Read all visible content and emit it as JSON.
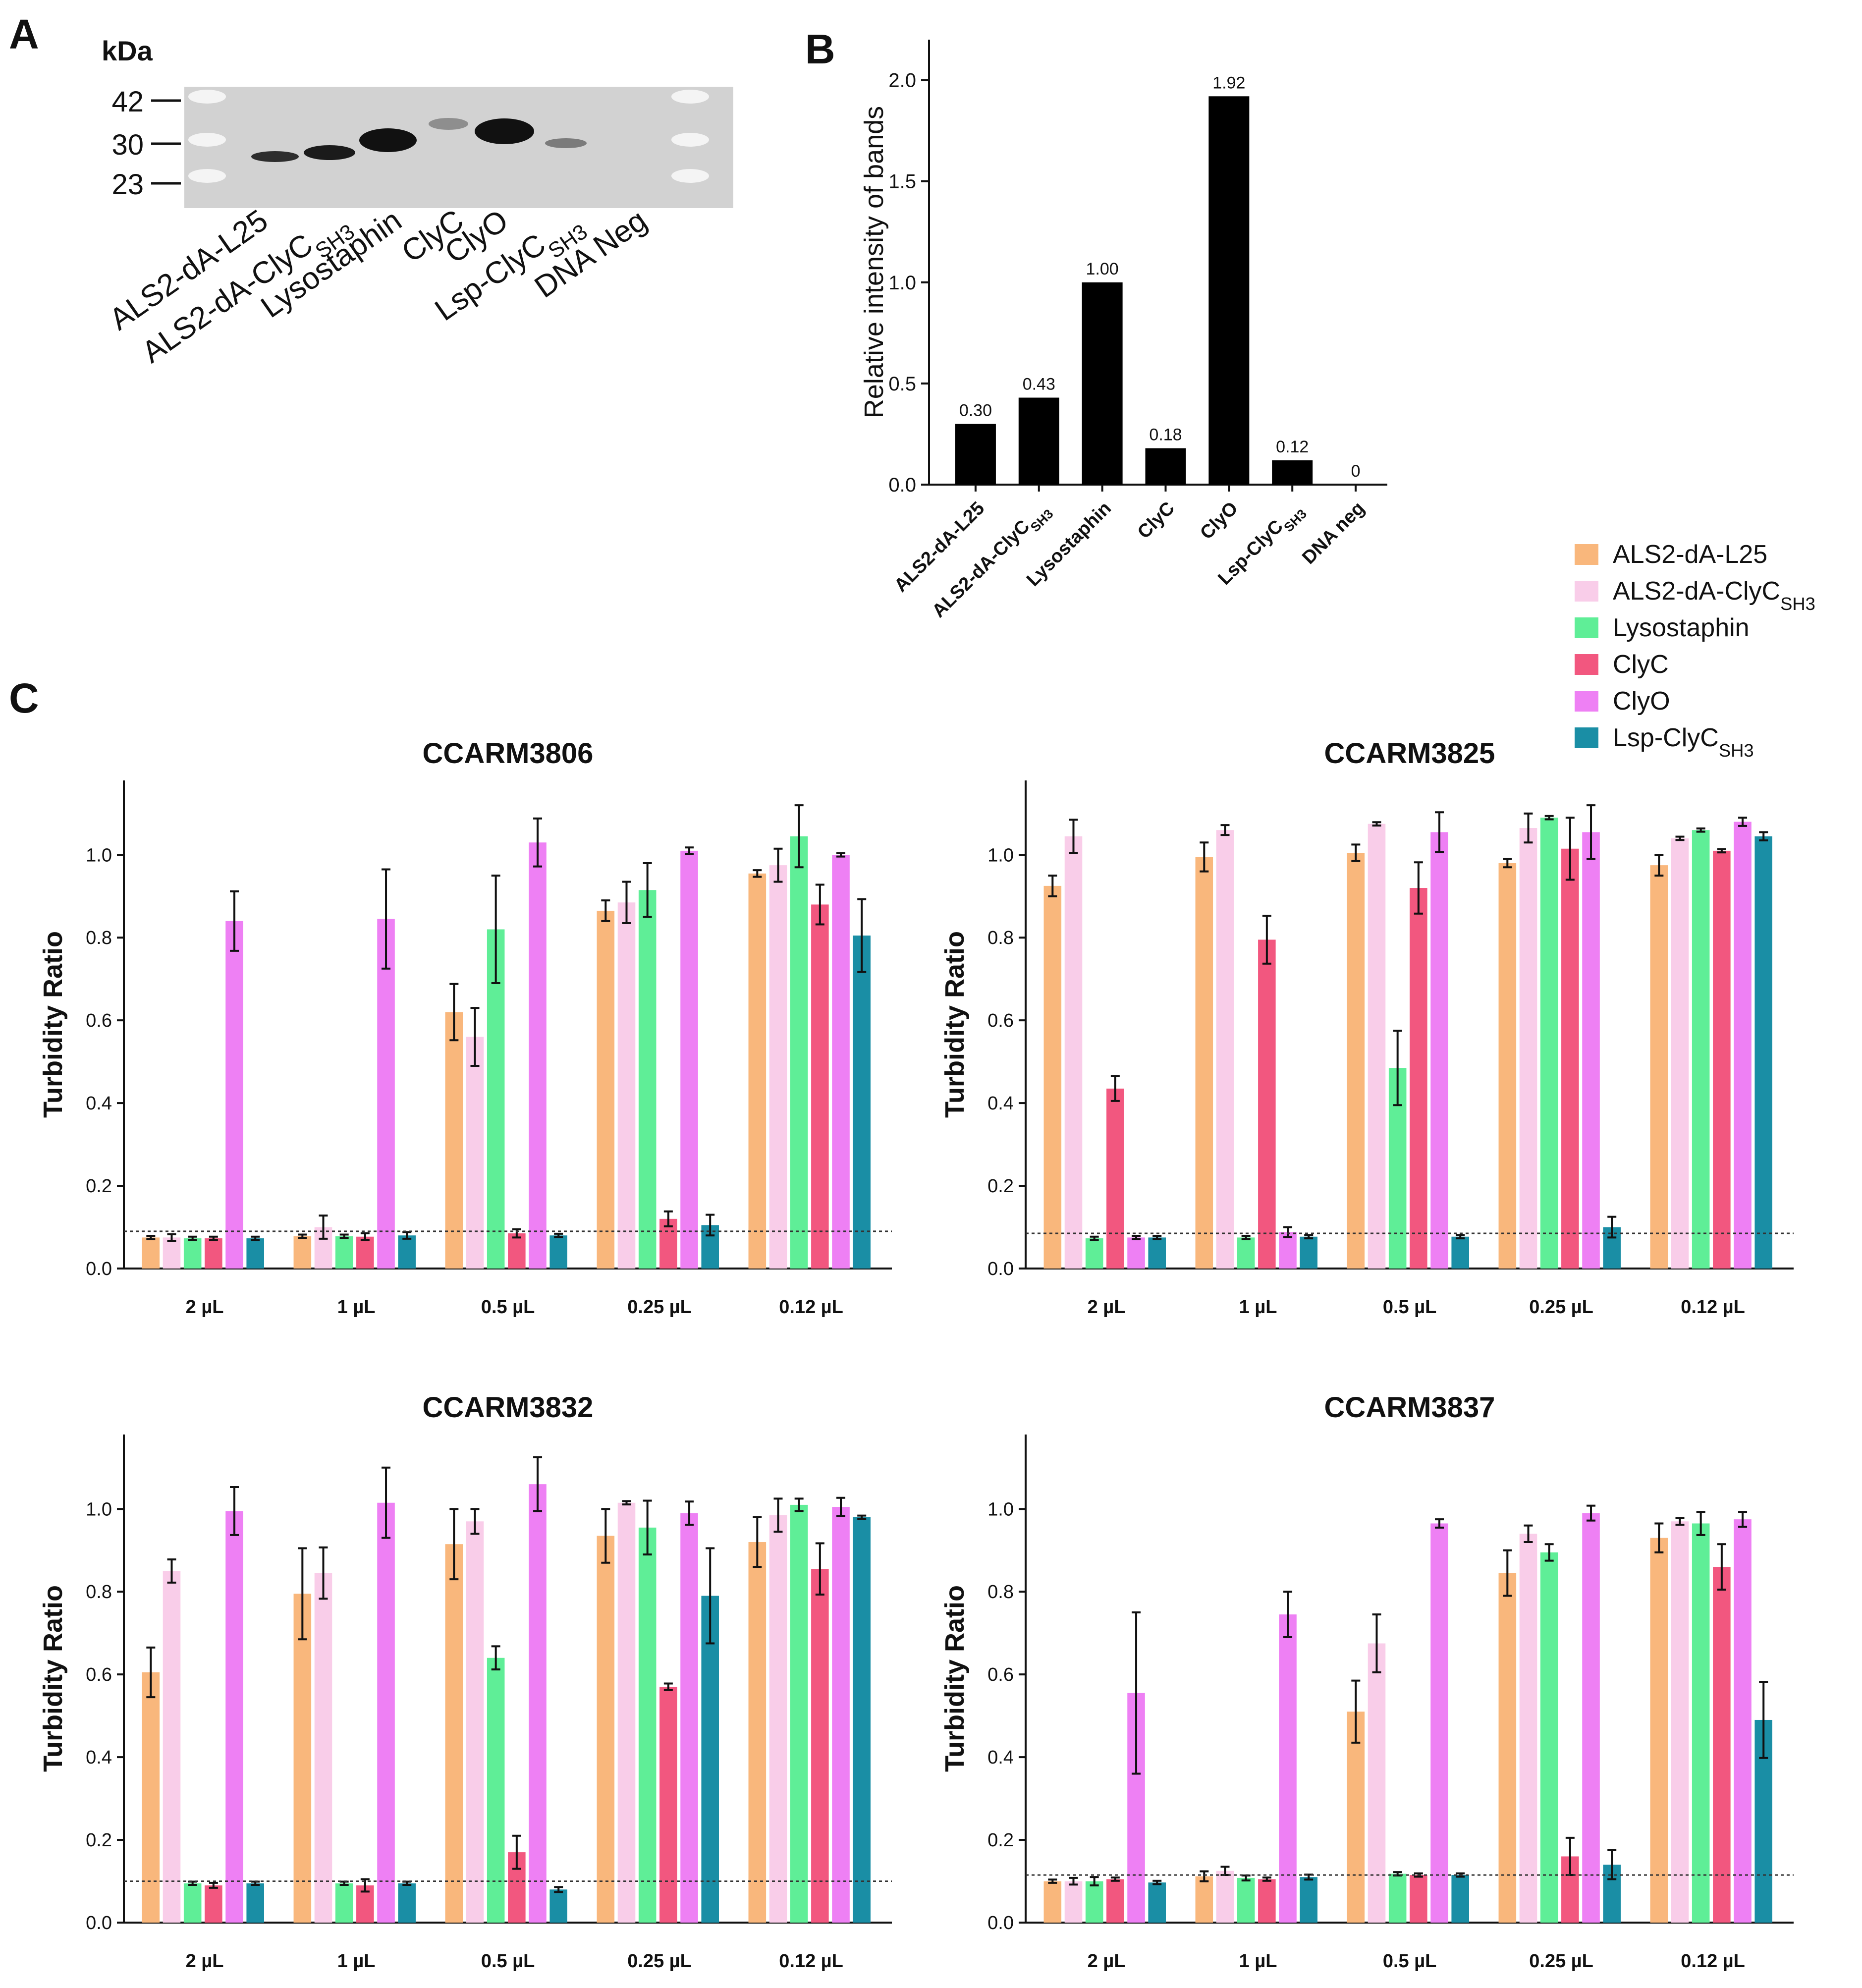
{
  "panel_labels": {
    "a": "A",
    "b": "B",
    "c": "C"
  },
  "colors": {
    "ALS2-dA-L25": "#f9b77c",
    "ALS2-dA-ClyC_SH3": "#f9cde9",
    "Lysostaphin": "#5fee97",
    "ClyC": "#f2577f",
    "ClyO": "#ee80f4",
    "Lsp-ClyC_SH3": "#1a8ea5",
    "bar_black": "#000000",
    "gel_background": "#d2d2d2",
    "gel_band": "#111111"
  },
  "gel": {
    "unit_label": "kDa",
    "markers": [
      "42",
      "30",
      "23"
    ],
    "lanes": [
      {
        "main": "ALS2-dA-L25",
        "sub": ""
      },
      {
        "main": "ALS2-dA-ClyC",
        "sub": "SH3"
      },
      {
        "main": "Lysostaphin",
        "sub": ""
      },
      {
        "main": "ClyC",
        "sub": ""
      },
      {
        "main": "ClyO",
        "sub": ""
      },
      {
        "main": "Lsp-ClyC",
        "sub": "SH3"
      },
      {
        "main": "DNA Neg",
        "sub": ""
      }
    ]
  },
  "legend": {
    "entries": [
      {
        "main": "ALS2-dA-L25",
        "sub": "",
        "color_key": "ALS2-dA-L25"
      },
      {
        "main": "ALS2-dA-ClyC",
        "sub": "SH3",
        "color_key": "ALS2-dA-ClyC_SH3"
      },
      {
        "main": "Lysostaphin",
        "sub": "",
        "color_key": "Lysostaphin"
      },
      {
        "main": "ClyC",
        "sub": "",
        "color_key": "ClyC"
      },
      {
        "main": "ClyO",
        "sub": "",
        "color_key": "ClyO"
      },
      {
        "main": "Lsp-ClyC",
        "sub": "SH3",
        "color_key": "Lsp-ClyC_SH3"
      }
    ]
  },
  "chart_data": [
    {
      "id": "B",
      "type": "bar",
      "title": "",
      "ylabel": "Relative intensity of bands",
      "xlabel": "",
      "categories": [
        {
          "main": "ALS2-dA-L25",
          "sub": ""
        },
        {
          "main": "ALS2-dA-ClyC",
          "sub": "SH3"
        },
        {
          "main": "Lysostaphin",
          "sub": ""
        },
        {
          "main": "ClyC",
          "sub": ""
        },
        {
          "main": "ClyO",
          "sub": ""
        },
        {
          "main": "Lsp-ClyC",
          "sub": "SH3"
        },
        {
          "main": "DNA neg",
          "sub": ""
        }
      ],
      "values": [
        0.3,
        0.43,
        1.0,
        0.18,
        1.92,
        0.12,
        0
      ],
      "data_labels": [
        "0.30",
        "0.43",
        "1.00",
        "0.18",
        "1.92",
        "0.12",
        "0"
      ],
      "ylim": [
        0,
        2.2
      ],
      "yticks": [
        "0.0",
        "0.5",
        "1.0",
        "1.5",
        "2.0"
      ],
      "grid": false
    },
    {
      "id": "C1",
      "type": "bar",
      "title": "CCARM3806",
      "ylabel": "Turbidity Ratio",
      "xlabel": "",
      "ylim": [
        0,
        1.18
      ],
      "yticks": [
        "0.0",
        "0.2",
        "0.4",
        "0.6",
        "0.8",
        "1.0"
      ],
      "threshold": 0.09,
      "categories": [
        "2 µL",
        "1 µL",
        "0.5 µL",
        "0.25 µL",
        "0.12 µL"
      ],
      "series": [
        {
          "name": "ALS2-dA-L25",
          "values": [
            0.075,
            0.078,
            0.62,
            0.865,
            0.955
          ],
          "errors": [
            0.004,
            0.004,
            0.068,
            0.025,
            0.008
          ]
        },
        {
          "name": "ALS2-dA-ClyC_SH3",
          "values": [
            0.075,
            0.1,
            0.56,
            0.885,
            0.975
          ],
          "errors": [
            0.008,
            0.028,
            0.07,
            0.05,
            0.04
          ]
        },
        {
          "name": "Lysostaphin",
          "values": [
            0.073,
            0.078,
            0.82,
            0.915,
            1.045
          ],
          "errors": [
            0.004,
            0.004,
            0.13,
            0.065,
            0.075
          ]
        },
        {
          "name": "ClyC",
          "values": [
            0.073,
            0.077,
            0.085,
            0.12,
            0.88
          ],
          "errors": [
            0.004,
            0.008,
            0.01,
            0.018,
            0.048
          ]
        },
        {
          "name": "ClyO",
          "values": [
            0.84,
            0.845,
            1.03,
            1.01,
            1.0
          ],
          "errors": [
            0.072,
            0.12,
            0.058,
            0.008,
            0.004
          ]
        },
        {
          "name": "Lsp-ClyC_SH3",
          "values": [
            0.073,
            0.08,
            0.08,
            0.105,
            0.805
          ],
          "errors": [
            0.004,
            0.008,
            0.004,
            0.025,
            0.088
          ]
        }
      ]
    },
    {
      "id": "C2",
      "type": "bar",
      "title": "CCARM3825",
      "ylabel": "Turbidity Ratio",
      "xlabel": "",
      "ylim": [
        0,
        1.18
      ],
      "yticks": [
        "0.0",
        "0.2",
        "0.4",
        "0.6",
        "0.8",
        "1.0"
      ],
      "threshold": 0.085,
      "categories": [
        "2 µL",
        "1 µL",
        "0.5 µL",
        "0.25 µL",
        "0.12 µL"
      ],
      "series": [
        {
          "name": "ALS2-dA-L25",
          "values": [
            0.925,
            0.995,
            1.005,
            0.98,
            0.975
          ],
          "errors": [
            0.025,
            0.035,
            0.02,
            0.01,
            0.025
          ]
        },
        {
          "name": "ALS2-dA-ClyC_SH3",
          "values": [
            1.045,
            1.06,
            1.075,
            1.065,
            1.04
          ],
          "errors": [
            0.04,
            0.012,
            0.004,
            0.035,
            0.004
          ]
        },
        {
          "name": "Lysostaphin",
          "values": [
            0.073,
            0.075,
            0.485,
            1.09,
            1.06
          ],
          "errors": [
            0.004,
            0.004,
            0.09,
            0.004,
            0.004
          ]
        },
        {
          "name": "ClyC",
          "values": [
            0.435,
            0.795,
            0.92,
            1.015,
            1.01
          ],
          "errors": [
            0.03,
            0.058,
            0.062,
            0.075,
            0.004
          ]
        },
        {
          "name": "ClyO",
          "values": [
            0.075,
            0.088,
            1.055,
            1.055,
            1.08
          ],
          "errors": [
            0.004,
            0.012,
            0.048,
            0.065,
            0.01
          ]
        },
        {
          "name": "Lsp-ClyC_SH3",
          "values": [
            0.075,
            0.077,
            0.077,
            0.1,
            1.045
          ],
          "errors": [
            0.004,
            0.004,
            0.004,
            0.025,
            0.01
          ]
        }
      ]
    },
    {
      "id": "C3",
      "type": "bar",
      "title": "CCARM3832",
      "ylabel": "Turbidity Ratio",
      "xlabel": "",
      "ylim": [
        0,
        1.18
      ],
      "yticks": [
        "0.0",
        "0.2",
        "0.4",
        "0.6",
        "0.8",
        "1.0"
      ],
      "threshold": 0.1,
      "categories": [
        "2 µL",
        "1 µL",
        "0.5 µL",
        "0.25 µL",
        "0.12 µL"
      ],
      "series": [
        {
          "name": "ALS2-dA-L25",
          "values": [
            0.605,
            0.795,
            0.915,
            0.935,
            0.92
          ],
          "errors": [
            0.06,
            0.11,
            0.085,
            0.065,
            0.06
          ]
        },
        {
          "name": "ALS2-dA-ClyC_SH3",
          "values": [
            0.85,
            0.845,
            0.97,
            1.015,
            0.985
          ],
          "errors": [
            0.028,
            0.062,
            0.03,
            0.004,
            0.04
          ]
        },
        {
          "name": "Lysostaphin",
          "values": [
            0.095,
            0.095,
            0.64,
            0.955,
            1.01
          ],
          "errors": [
            0.004,
            0.004,
            0.028,
            0.065,
            0.015
          ]
        },
        {
          "name": "ClyC",
          "values": [
            0.09,
            0.09,
            0.17,
            0.57,
            0.855
          ],
          "errors": [
            0.006,
            0.015,
            0.04,
            0.008,
            0.062
          ]
        },
        {
          "name": "ClyO",
          "values": [
            0.995,
            1.015,
            1.06,
            0.99,
            1.005
          ],
          "errors": [
            0.058,
            0.085,
            0.065,
            0.028,
            0.022
          ]
        },
        {
          "name": "Lsp-ClyC_SH3",
          "values": [
            0.095,
            0.095,
            0.08,
            0.79,
            0.98
          ],
          "errors": [
            0.004,
            0.004,
            0.006,
            0.115,
            0.004
          ]
        }
      ]
    },
    {
      "id": "C4",
      "type": "bar",
      "title": "CCARM3837",
      "ylabel": "Turbidity Ratio",
      "xlabel": "",
      "ylim": [
        0,
        1.18
      ],
      "yticks": [
        "0.0",
        "0.2",
        "0.4",
        "0.6",
        "0.8",
        "1.0"
      ],
      "threshold": 0.115,
      "categories": [
        "2 µL",
        "1 µL",
        "0.5 µL",
        "0.25 µL",
        "0.12 µL"
      ],
      "series": [
        {
          "name": "ALS2-dA-L25",
          "values": [
            0.1,
            0.112,
            0.51,
            0.845,
            0.93
          ],
          "errors": [
            0.004,
            0.012,
            0.075,
            0.055,
            0.035
          ]
        },
        {
          "name": "ALS2-dA-ClyC_SH3",
          "values": [
            0.1,
            0.125,
            0.675,
            0.94,
            0.97
          ],
          "errors": [
            0.008,
            0.01,
            0.07,
            0.02,
            0.008
          ]
        },
        {
          "name": "Lysostaphin",
          "values": [
            0.1,
            0.108,
            0.118,
            0.895,
            0.965
          ],
          "errors": [
            0.01,
            0.006,
            0.004,
            0.02,
            0.028
          ]
        },
        {
          "name": "ClyC",
          "values": [
            0.105,
            0.105,
            0.115,
            0.16,
            0.86
          ],
          "errors": [
            0.004,
            0.004,
            0.004,
            0.045,
            0.055
          ]
        },
        {
          "name": "ClyO",
          "values": [
            0.555,
            0.745,
            0.965,
            0.99,
            0.975
          ],
          "errors": [
            0.195,
            0.055,
            0.01,
            0.018,
            0.018
          ]
        },
        {
          "name": "Lsp-ClyC_SH3",
          "values": [
            0.097,
            0.11,
            0.115,
            0.14,
            0.49
          ],
          "errors": [
            0.004,
            0.006,
            0.004,
            0.035,
            0.092
          ]
        }
      ]
    }
  ]
}
